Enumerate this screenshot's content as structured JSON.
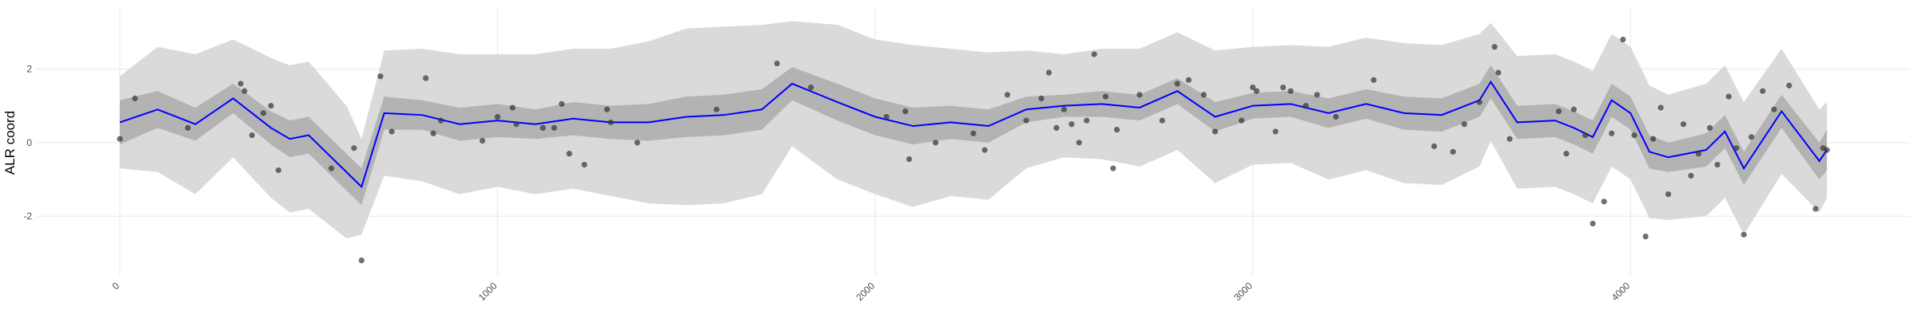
{
  "chart_data": {
    "type": "line",
    "y_label": "ALR coord",
    "xlim": [
      -220,
      4740
    ],
    "ylim": [
      -3.6,
      3.7
    ],
    "xticks": [
      0,
      1000,
      2000,
      3000,
      4000
    ],
    "yticks": [
      -2,
      0,
      2
    ],
    "grid": true,
    "x": [
      0,
      100,
      200,
      300,
      400,
      450,
      500,
      600,
      640,
      700,
      800,
      900,
      1000,
      1100,
      1200,
      1300,
      1400,
      1500,
      1600,
      1700,
      1780,
      1900,
      2000,
      2100,
      2200,
      2300,
      2400,
      2500,
      2600,
      2700,
      2800,
      2900,
      3000,
      3100,
      3200,
      3300,
      3400,
      3500,
      3600,
      3630,
      3700,
      3800,
      3850,
      3900,
      3950,
      4000,
      4050,
      4100,
      4200,
      4250,
      4300,
      4400,
      4500,
      4520
    ],
    "bands": [
      {
        "color": "#d3d3d3",
        "lower": [
          -0.7,
          -0.8,
          -1.4,
          -0.4,
          -1.5,
          -1.9,
          -1.8,
          -2.6,
          -2.5,
          -0.9,
          -1.05,
          -1.4,
          -1.2,
          -1.4,
          -1.25,
          -1.45,
          -1.65,
          -1.7,
          -1.65,
          -1.4,
          -0.1,
          -1.0,
          -1.4,
          -1.75,
          -1.45,
          -1.55,
          -0.7,
          -0.4,
          -0.45,
          -0.65,
          -0.2,
          -1.1,
          -0.6,
          -0.55,
          -1.0,
          -0.75,
          -1.1,
          -1.15,
          -0.65,
          0.05,
          -1.25,
          -1.2,
          -1.4,
          -1.65,
          -0.65,
          -1.0,
          -2.05,
          -2.1,
          -2.0,
          -1.5,
          -2.5,
          -0.85,
          -1.9,
          -1.5
        ],
        "upper": [
          1.8,
          2.6,
          2.4,
          2.8,
          2.3,
          2.1,
          2.2,
          1.0,
          0.1,
          2.5,
          2.55,
          2.4,
          2.4,
          2.4,
          2.55,
          2.55,
          2.75,
          3.1,
          3.15,
          3.2,
          3.3,
          3.2,
          2.8,
          2.65,
          2.55,
          2.45,
          2.5,
          2.4,
          2.55,
          2.55,
          3.0,
          2.5,
          2.6,
          2.65,
          2.6,
          2.85,
          2.7,
          2.65,
          2.95,
          3.25,
          2.35,
          2.4,
          2.2,
          1.95,
          2.95,
          2.6,
          1.55,
          1.3,
          1.6,
          2.1,
          1.1,
          2.55,
          0.9,
          1.1
        ]
      },
      {
        "color": "#ababab",
        "lower": [
          -0.05,
          0.4,
          0.05,
          0.8,
          -0.05,
          -0.4,
          -0.3,
          -1.3,
          -1.7,
          0.35,
          0.35,
          0.05,
          0.15,
          0.1,
          0.2,
          0.1,
          0.05,
          0.15,
          0.2,
          0.35,
          1.15,
          0.6,
          0.2,
          -0.05,
          0.1,
          0,
          0.55,
          0.7,
          0.7,
          0.6,
          1.05,
          0.3,
          0.65,
          0.7,
          0.4,
          0.65,
          0.35,
          0.3,
          0.7,
          1.2,
          0.1,
          0.15,
          -0.05,
          -0.3,
          0.7,
          0.35,
          -0.7,
          -0.8,
          -0.65,
          -0.15,
          -1.15,
          0.4,
          -1.0,
          -0.75
        ],
        "upper": [
          1.15,
          1.4,
          0.95,
          1.6,
          0.85,
          0.6,
          0.7,
          -0.3,
          -0.7,
          1.25,
          1.15,
          0.95,
          1.05,
          0.9,
          1.1,
          1.0,
          1.05,
          1.25,
          1.3,
          1.45,
          2.05,
          1.6,
          1.2,
          0.95,
          1.0,
          0.9,
          1.25,
          1.3,
          1.4,
          1.3,
          1.75,
          1.1,
          1.35,
          1.4,
          1.2,
          1.45,
          1.25,
          1.2,
          1.6,
          2.1,
          1.0,
          1.05,
          0.85,
          0.6,
          1.6,
          1.25,
          0.2,
          0.0,
          0.25,
          0.75,
          -0.25,
          1.3,
          0.0,
          0.35
        ]
      }
    ],
    "series": [
      {
        "color": "#0000ff",
        "values": [
          0.55,
          0.9,
          0.5,
          1.2,
          0.4,
          0.1,
          0.2,
          -0.8,
          -1.2,
          0.8,
          0.75,
          0.5,
          0.6,
          0.5,
          0.65,
          0.55,
          0.55,
          0.7,
          0.75,
          0.9,
          1.6,
          1.1,
          0.7,
          0.45,
          0.55,
          0.45,
          0.9,
          1.0,
          1.05,
          0.95,
          1.4,
          0.7,
          1.0,
          1.05,
          0.8,
          1.05,
          0.8,
          0.75,
          1.15,
          1.65,
          0.55,
          0.6,
          0.4,
          0.15,
          1.15,
          0.8,
          -0.25,
          -0.4,
          -0.2,
          0.3,
          -0.7,
          0.85,
          -0.5,
          -0.2
        ]
      }
    ],
    "points": {
      "color": "#333333",
      "x": [
        0,
        40,
        180,
        320,
        330,
        350,
        400,
        380,
        420,
        560,
        620,
        640,
        690,
        720,
        810,
        830,
        850,
        960,
        1000,
        1050,
        1040,
        1120,
        1150,
        1190,
        1230,
        1170,
        1290,
        1300,
        1370,
        1580,
        1740,
        1830,
        2030,
        2090,
        2080,
        2160,
        2290,
        2260,
        2350,
        2400,
        2440,
        2460,
        2480,
        2500,
        2520,
        2540,
        2560,
        2580,
        2610,
        2630,
        2640,
        2700,
        2760,
        2800,
        2830,
        2870,
        2900,
        2970,
        3000,
        3010,
        3060,
        3080,
        3100,
        3140,
        3170,
        3220,
        3320,
        3480,
        3530,
        3560,
        3600,
        3640,
        3650,
        3680,
        3810,
        3830,
        3850,
        3880,
        3900,
        3930,
        3950,
        3980,
        4010,
        4040,
        4060,
        4080,
        4100,
        4140,
        4160,
        4180,
        4210,
        4230,
        4260,
        4280,
        4300,
        4320,
        4350,
        4380,
        4420,
        4490,
        4510,
        4520
      ],
      "y": [
        0.1,
        1.2,
        0.4,
        1.6,
        1.4,
        0.2,
        1.0,
        0.8,
        -0.75,
        -0.7,
        -0.15,
        -3.2,
        1.8,
        0.3,
        1.75,
        0.25,
        0.6,
        0.05,
        0.7,
        0.5,
        0.95,
        0.4,
        0.4,
        -0.3,
        -0.6,
        1.05,
        0.9,
        0.55,
        0.0,
        0.9,
        2.15,
        1.5,
        0.7,
        -0.45,
        0.85,
        0.0,
        -0.2,
        0.25,
        1.3,
        0.6,
        1.2,
        1.9,
        0.4,
        0.9,
        0.5,
        0.0,
        0.6,
        2.4,
        1.25,
        -0.7,
        0.35,
        1.3,
        0.6,
        1.6,
        1.7,
        1.3,
        0.3,
        0.6,
        1.5,
        1.4,
        0.3,
        1.5,
        1.4,
        1.0,
        1.3,
        0.7,
        1.7,
        -0.1,
        -0.25,
        0.5,
        1.1,
        2.6,
        1.9,
        0.1,
        0.85,
        -0.3,
        0.9,
        0.2,
        -2.2,
        -1.6,
        0.25,
        2.8,
        0.2,
        -2.55,
        0.1,
        0.95,
        -1.4,
        0.5,
        -0.9,
        -0.3,
        0.4,
        -0.6,
        1.25,
        -0.15,
        -2.5,
        0.15,
        1.4,
        0.9,
        1.55,
        -1.8,
        -0.15,
        -0.2
      ]
    }
  }
}
